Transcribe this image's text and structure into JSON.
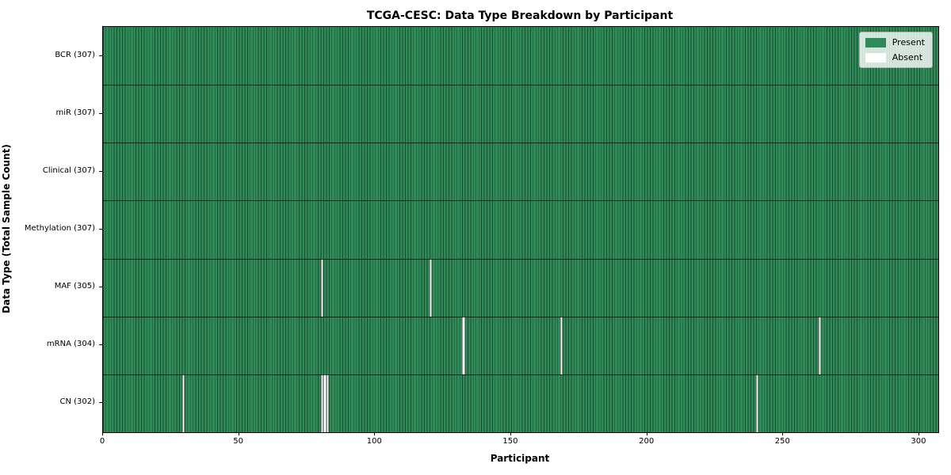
{
  "chart_data": {
    "type": "heatmap",
    "title": "TCGA-CESC: Data Type Breakdown by Participant",
    "xlabel": "Participant",
    "ylabel": "Data Type (Total Sample Count)",
    "n_participants": 307,
    "x_ticks": [
      0,
      50,
      100,
      150,
      200,
      250,
      300
    ],
    "xlim": [
      0,
      307
    ],
    "grid": false,
    "legend_position": "upper right",
    "legend": [
      {
        "label": "Present",
        "color": "#2E8B57"
      },
      {
        "label": "Absent",
        "color": "#ffffff"
      }
    ],
    "rows": [
      {
        "label": "BCR (307)",
        "data_type": "BCR",
        "present_count": 307,
        "absent_participants": []
      },
      {
        "label": "miR (307)",
        "data_type": "miR",
        "present_count": 307,
        "absent_participants": []
      },
      {
        "label": "Clinical (307)",
        "data_type": "Clinical",
        "present_count": 307,
        "absent_participants": []
      },
      {
        "label": "Methylation (307)",
        "data_type": "Methylation",
        "present_count": 307,
        "absent_participants": []
      },
      {
        "label": "MAF (305)",
        "data_type": "MAF",
        "present_count": 305,
        "absent_participants": [
          80,
          120
        ]
      },
      {
        "label": "mRNA (304)",
        "data_type": "mRNA",
        "present_count": 304,
        "absent_participants": [
          132,
          168,
          263
        ]
      },
      {
        "label": "CN (302)",
        "data_type": "CN",
        "present_count": 302,
        "absent_participants": [
          29,
          80,
          81,
          82,
          240
        ]
      }
    ],
    "colors": {
      "present": "#2E8B57",
      "absent": "#ffffff",
      "cell_edge": "#174529",
      "row_divider": "#000000",
      "legend_border": "#b0b0b0"
    }
  }
}
